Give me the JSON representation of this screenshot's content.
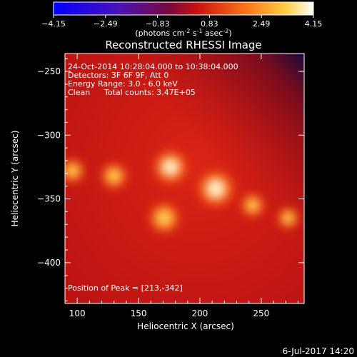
{
  "colorbar": {
    "ticks": [
      "-4.15",
      "-2.49",
      "-0.83",
      "0.83",
      "2.49",
      "4.15"
    ],
    "units_prefix": "(photons cm",
    "units_exp1": "-2",
    "units_mid": " s",
    "units_exp2": "-1",
    "units_mid2": " asec",
    "units_exp3": "-2",
    "units_suffix": ")"
  },
  "chart_data": {
    "type": "heatmap",
    "title": "Reconstructed RHESSI Image",
    "xlabel": "Heliocentric X (arcsec)",
    "ylabel": "Heliocentric Y (arcsec)",
    "xlim": [
      90,
      285
    ],
    "ylim": [
      -432,
      -236
    ],
    "xticks": [
      100,
      150,
      200,
      250
    ],
    "yticks": [
      -250,
      -300,
      -350,
      -400
    ],
    "sources": [
      {
        "x": 213,
        "y": -342,
        "intensity": 4.15
      },
      {
        "x": 176,
        "y": -325,
        "intensity": 3.6
      },
      {
        "x": 171,
        "y": -365,
        "intensity": 3.0
      },
      {
        "x": 130,
        "y": -332,
        "intensity": 2.2
      },
      {
        "x": 96,
        "y": -328,
        "intensity": 1.9
      },
      {
        "x": 243,
        "y": -355,
        "intensity": 1.7
      },
      {
        "x": 272,
        "y": -365,
        "intensity": 1.4
      }
    ],
    "annotations": [
      "24-Oct-2014 10:28:04.000 to 10:38:04.000",
      "Detectors: 3F 6F 9F, Att 0",
      "Energy Range: 3.0 - 6.0 keV",
      "Clean",
      "Total counts: 3.47E+05"
    ],
    "peak_label": "Position of Peak = [213,-342]"
  },
  "footer": {
    "date": "6-Jul-2017 14:20"
  }
}
